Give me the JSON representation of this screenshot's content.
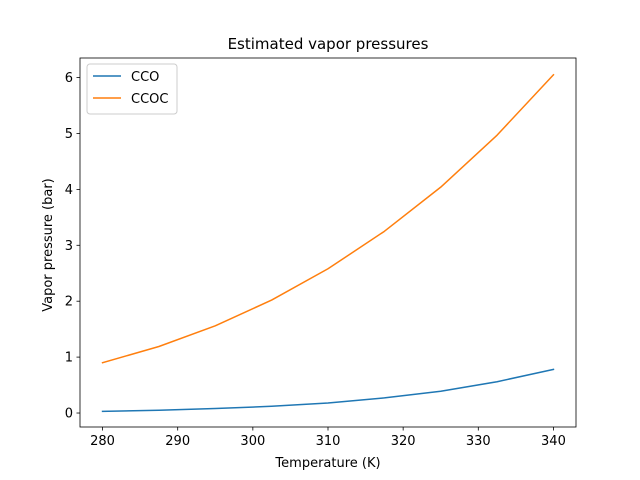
{
  "chart_data": {
    "type": "line",
    "title": "Estimated vapor pressures",
    "xlabel": "Temperature (K)",
    "ylabel": "Vapor pressure (bar)",
    "xlim": [
      277,
      343
    ],
    "ylim": [
      -0.25,
      6.35
    ],
    "xticks": [
      280,
      290,
      300,
      310,
      320,
      330,
      340
    ],
    "yticks": [
      0,
      1,
      2,
      3,
      4,
      5,
      6
    ],
    "grid": false,
    "legend_position": "top-left",
    "series": [
      {
        "name": "CCO",
        "color": "#1f77b4",
        "x": [
          280,
          287.5,
          295,
          302.5,
          310,
          317.5,
          325,
          332.5,
          340
        ],
        "y": [
          0.03,
          0.05,
          0.08,
          0.12,
          0.18,
          0.27,
          0.39,
          0.56,
          0.78
        ]
      },
      {
        "name": "CCOC",
        "color": "#ff7f0e",
        "x": [
          280,
          287.5,
          295,
          302.5,
          310,
          317.5,
          325,
          332.5,
          340
        ],
        "y": [
          0.9,
          1.19,
          1.56,
          2.02,
          2.58,
          3.25,
          4.04,
          4.97,
          6.05
        ]
      }
    ]
  }
}
